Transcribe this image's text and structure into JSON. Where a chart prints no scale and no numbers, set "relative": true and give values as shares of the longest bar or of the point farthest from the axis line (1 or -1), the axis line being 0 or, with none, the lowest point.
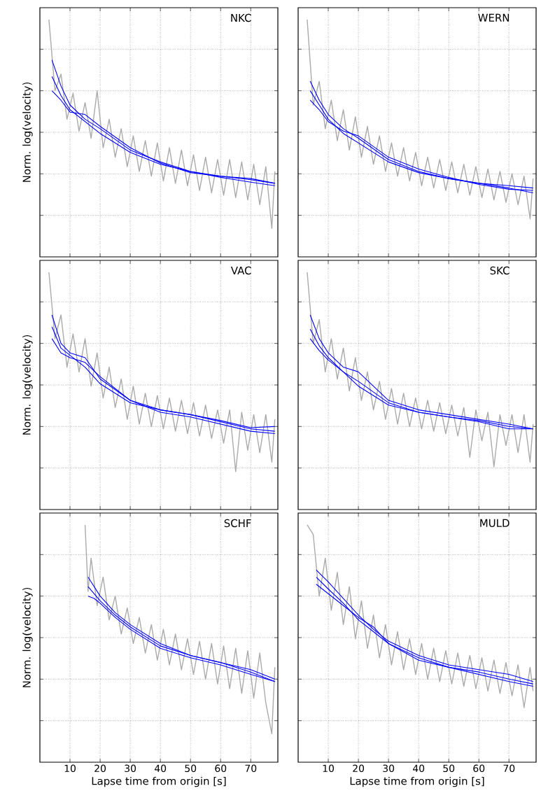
{
  "chart_data": [
    {
      "type": "line",
      "title": "NKC",
      "ylabel": "Norm. log(velocity)",
      "xlim": [
        0,
        79
      ],
      "xticks": [
        10,
        20,
        30,
        40,
        50,
        60,
        70
      ],
      "tick_labels": false,
      "grid": true,
      "relative": true,
      "series": [
        {
          "color": "#aaaaaa",
          "x": [
            3,
            5,
            7,
            9,
            11,
            13,
            15,
            17,
            19,
            21,
            23,
            25,
            27,
            29,
            31,
            33,
            35,
            37,
            39,
            41,
            43,
            45,
            47,
            49,
            51,
            53,
            55,
            57,
            59,
            61,
            63,
            65,
            67,
            69,
            71,
            73,
            75,
            77,
            78
          ],
          "values": [
            1.0,
            0.7,
            0.77,
            0.58,
            0.69,
            0.53,
            0.65,
            0.5,
            0.7,
            0.46,
            0.58,
            0.42,
            0.54,
            0.38,
            0.51,
            0.36,
            0.49,
            0.34,
            0.48,
            0.32,
            0.46,
            0.31,
            0.45,
            0.3,
            0.43,
            0.28,
            0.42,
            0.27,
            0.41,
            0.26,
            0.41,
            0.25,
            0.4,
            0.24,
            0.39,
            0.22,
            0.38,
            0.12,
            0.36
          ]
        },
        {
          "color": "#0000ff",
          "x": [
            4,
            7,
            10,
            15,
            20,
            30,
            40,
            50,
            60,
            70,
            78
          ],
          "values": [
            0.83,
            0.72,
            0.64,
            0.58,
            0.54,
            0.45,
            0.4,
            0.36,
            0.34,
            0.33,
            0.31
          ]
        },
        {
          "color": "#0000ff",
          "x": [
            4,
            7,
            10,
            15,
            20,
            30,
            40,
            50,
            60,
            70,
            78
          ],
          "values": [
            0.76,
            0.68,
            0.62,
            0.57,
            0.52,
            0.44,
            0.39,
            0.36,
            0.335,
            0.315,
            0.3
          ]
        },
        {
          "color": "#0000ff",
          "x": [
            4,
            7,
            10,
            15,
            20,
            30,
            40,
            50,
            60,
            70,
            78
          ],
          "values": [
            0.7,
            0.66,
            0.61,
            0.6,
            0.55,
            0.46,
            0.395,
            0.355,
            0.34,
            0.325,
            0.31
          ]
        }
      ]
    },
    {
      "type": "line",
      "title": "WERN",
      "xlim": [
        0,
        79
      ],
      "xticks": [
        10,
        20,
        30,
        40,
        50,
        60,
        70
      ],
      "tick_labels": false,
      "grid": true,
      "relative": true,
      "series": [
        {
          "color": "#aaaaaa",
          "x": [
            3,
            5,
            7,
            9,
            11,
            13,
            15,
            17,
            19,
            21,
            23,
            25,
            27,
            29,
            31,
            33,
            35,
            37,
            39,
            41,
            43,
            45,
            47,
            49,
            51,
            53,
            55,
            57,
            59,
            61,
            63,
            65,
            67,
            69,
            71,
            73,
            75,
            77,
            78
          ],
          "values": [
            1.0,
            0.64,
            0.74,
            0.54,
            0.66,
            0.49,
            0.62,
            0.45,
            0.59,
            0.42,
            0.55,
            0.39,
            0.51,
            0.36,
            0.48,
            0.34,
            0.46,
            0.32,
            0.44,
            0.3,
            0.42,
            0.29,
            0.41,
            0.28,
            0.4,
            0.27,
            0.39,
            0.26,
            0.38,
            0.25,
            0.37,
            0.24,
            0.36,
            0.23,
            0.35,
            0.22,
            0.34,
            0.16,
            0.33
          ]
        },
        {
          "color": "#0000ff",
          "x": [
            4,
            7,
            10,
            15,
            20,
            30,
            40,
            50,
            60,
            70,
            78
          ],
          "values": [
            0.74,
            0.66,
            0.6,
            0.54,
            0.5,
            0.41,
            0.36,
            0.33,
            0.31,
            0.3,
            0.29
          ]
        },
        {
          "color": "#0000ff",
          "x": [
            4,
            7,
            10,
            15,
            20,
            30,
            40,
            50,
            60,
            70,
            78
          ],
          "values": [
            0.7,
            0.64,
            0.58,
            0.52,
            0.48,
            0.4,
            0.355,
            0.33,
            0.31,
            0.29,
            0.27
          ]
        },
        {
          "color": "#0000ff",
          "x": [
            4,
            7,
            10,
            15,
            20,
            30,
            40,
            50,
            60,
            70,
            78
          ],
          "values": [
            0.66,
            0.62,
            0.57,
            0.53,
            0.51,
            0.42,
            0.37,
            0.335,
            0.305,
            0.285,
            0.28
          ]
        }
      ]
    },
    {
      "type": "line",
      "title": "VAC",
      "ylabel": "Norm. log(velocity)",
      "xlim": [
        0,
        79
      ],
      "xticks": [
        10,
        20,
        30,
        40,
        50,
        60,
        70
      ],
      "tick_labels": false,
      "grid": true,
      "relative": true,
      "series": [
        {
          "color": "#aaaaaa",
          "x": [
            3,
            5,
            7,
            9,
            11,
            13,
            15,
            17,
            19,
            21,
            23,
            25,
            27,
            29,
            31,
            33,
            35,
            37,
            39,
            41,
            43,
            45,
            47,
            49,
            51,
            53,
            55,
            57,
            59,
            61,
            63,
            65,
            67,
            69,
            71,
            73,
            75,
            77,
            78
          ],
          "values": [
            1.0,
            0.72,
            0.82,
            0.6,
            0.74,
            0.58,
            0.72,
            0.52,
            0.66,
            0.47,
            0.6,
            0.43,
            0.55,
            0.38,
            0.52,
            0.36,
            0.49,
            0.35,
            0.48,
            0.34,
            0.47,
            0.33,
            0.46,
            0.32,
            0.45,
            0.31,
            0.44,
            0.3,
            0.42,
            0.28,
            0.42,
            0.16,
            0.41,
            0.25,
            0.4,
            0.24,
            0.4,
            0.2,
            0.38
          ]
        },
        {
          "color": "#0000ff",
          "x": [
            4,
            7,
            10,
            15,
            20,
            30,
            40,
            50,
            60,
            70,
            78
          ],
          "values": [
            0.82,
            0.7,
            0.66,
            0.64,
            0.55,
            0.46,
            0.42,
            0.4,
            0.37,
            0.34,
            0.33
          ]
        },
        {
          "color": "#0000ff",
          "x": [
            4,
            7,
            10,
            15,
            20,
            30,
            40,
            50,
            60,
            70,
            78
          ],
          "values": [
            0.77,
            0.68,
            0.65,
            0.6,
            0.53,
            0.45,
            0.42,
            0.4,
            0.375,
            0.345,
            0.35
          ]
        },
        {
          "color": "#0000ff",
          "x": [
            4,
            7,
            10,
            15,
            20,
            30,
            40,
            50,
            60,
            70,
            78
          ],
          "values": [
            0.72,
            0.66,
            0.64,
            0.62,
            0.56,
            0.46,
            0.41,
            0.39,
            0.36,
            0.33,
            0.32
          ]
        }
      ]
    },
    {
      "type": "line",
      "title": "SKC",
      "xlim": [
        0,
        79
      ],
      "xticks": [
        10,
        20,
        30,
        40,
        50,
        60,
        70
      ],
      "tick_labels": false,
      "grid": true,
      "relative": true,
      "series": [
        {
          "color": "#aaaaaa",
          "x": [
            3,
            5,
            7,
            9,
            11,
            13,
            15,
            17,
            19,
            21,
            23,
            25,
            27,
            29,
            31,
            33,
            35,
            37,
            39,
            41,
            43,
            45,
            47,
            49,
            51,
            53,
            55,
            57,
            59,
            61,
            63,
            65,
            67,
            69,
            71,
            73,
            75,
            77,
            78
          ],
          "values": [
            1.0,
            0.7,
            0.8,
            0.58,
            0.72,
            0.55,
            0.68,
            0.5,
            0.64,
            0.46,
            0.58,
            0.42,
            0.54,
            0.38,
            0.51,
            0.36,
            0.49,
            0.35,
            0.47,
            0.34,
            0.46,
            0.33,
            0.45,
            0.32,
            0.44,
            0.31,
            0.43,
            0.22,
            0.42,
            0.29,
            0.41,
            0.18,
            0.4,
            0.27,
            0.4,
            0.24,
            0.4,
            0.2,
            0.36
          ]
        },
        {
          "color": "#0000ff",
          "x": [
            4,
            7,
            10,
            15,
            20,
            30,
            40,
            50,
            60,
            70,
            78
          ],
          "values": [
            0.82,
            0.72,
            0.66,
            0.6,
            0.58,
            0.46,
            0.42,
            0.4,
            0.38,
            0.36,
            0.34
          ]
        },
        {
          "color": "#0000ff",
          "x": [
            4,
            7,
            10,
            15,
            20,
            30,
            40,
            50,
            60,
            70,
            78
          ],
          "values": [
            0.76,
            0.69,
            0.64,
            0.58,
            0.54,
            0.45,
            0.41,
            0.39,
            0.375,
            0.35,
            0.34
          ]
        },
        {
          "color": "#0000ff",
          "x": [
            4,
            7,
            10,
            15,
            20,
            30,
            40,
            50,
            60,
            70,
            78
          ],
          "values": [
            0.72,
            0.67,
            0.63,
            0.58,
            0.52,
            0.44,
            0.41,
            0.39,
            0.37,
            0.34,
            0.34
          ]
        }
      ]
    },
    {
      "type": "line",
      "title": "SCHF",
      "xlabel": "Lapse time from origin [s]",
      "ylabel": "Norm. log(velocity)",
      "xlim": [
        0,
        79
      ],
      "xticks": [
        10,
        20,
        30,
        40,
        50,
        60,
        70
      ],
      "tick_labels": "x",
      "grid": true,
      "relative": true,
      "series": [
        {
          "color": "#aaaaaa",
          "x": [
            15,
            16,
            17,
            19,
            21,
            23,
            25,
            27,
            29,
            31,
            33,
            35,
            37,
            39,
            41,
            43,
            45,
            47,
            49,
            51,
            53,
            55,
            57,
            59,
            61,
            63,
            65,
            67,
            69,
            71,
            73,
            75,
            77,
            78
          ],
          "values": [
            1.0,
            0.72,
            0.86,
            0.66,
            0.78,
            0.6,
            0.7,
            0.54,
            0.65,
            0.5,
            0.61,
            0.46,
            0.58,
            0.43,
            0.56,
            0.41,
            0.54,
            0.39,
            0.52,
            0.37,
            0.51,
            0.35,
            0.5,
            0.33,
            0.49,
            0.31,
            0.48,
            0.29,
            0.47,
            0.27,
            0.46,
            0.25,
            0.12,
            0.4
          ]
        },
        {
          "color": "#0000ff",
          "x": [
            16,
            18,
            20,
            25,
            30,
            40,
            50,
            60,
            70,
            78
          ],
          "values": [
            0.78,
            0.74,
            0.7,
            0.63,
            0.58,
            0.5,
            0.45,
            0.42,
            0.39,
            0.35
          ]
        },
        {
          "color": "#0000ff",
          "x": [
            16,
            18,
            20,
            25,
            30,
            40,
            50,
            60,
            70,
            78
          ],
          "values": [
            0.74,
            0.71,
            0.68,
            0.62,
            0.57,
            0.49,
            0.45,
            0.42,
            0.38,
            0.34
          ]
        },
        {
          "color": "#0000ff",
          "x": [
            16,
            18,
            20,
            25,
            30,
            40,
            50,
            60,
            70,
            78
          ],
          "values": [
            0.7,
            0.69,
            0.67,
            0.61,
            0.56,
            0.48,
            0.44,
            0.41,
            0.37,
            0.34
          ]
        }
      ]
    },
    {
      "type": "line",
      "title": "MULD",
      "xlabel": "Lapse time from origin [s]",
      "xlim": [
        0,
        79
      ],
      "xticks": [
        10,
        20,
        30,
        40,
        50,
        60,
        70
      ],
      "tick_labels": "x",
      "grid": true,
      "relative": true,
      "series": [
        {
          "color": "#aaaaaa",
          "x": [
            3,
            5,
            7,
            9,
            11,
            13,
            15,
            17,
            19,
            21,
            23,
            25,
            27,
            29,
            31,
            33,
            35,
            37,
            39,
            41,
            43,
            45,
            47,
            49,
            51,
            53,
            55,
            57,
            59,
            61,
            63,
            65,
            67,
            69,
            71,
            73,
            75,
            77,
            78
          ],
          "values": [
            1.0,
            0.96,
            0.7,
            0.86,
            0.64,
            0.8,
            0.58,
            0.74,
            0.52,
            0.68,
            0.48,
            0.62,
            0.44,
            0.58,
            0.41,
            0.55,
            0.39,
            0.52,
            0.37,
            0.5,
            0.35,
            0.48,
            0.34,
            0.47,
            0.33,
            0.46,
            0.32,
            0.45,
            0.31,
            0.44,
            0.3,
            0.43,
            0.29,
            0.42,
            0.28,
            0.41,
            0.23,
            0.4,
            0.3
          ]
        },
        {
          "color": "#0000ff",
          "x": [
            6,
            10,
            15,
            20,
            25,
            30,
            40,
            50,
            60,
            70,
            78
          ],
          "values": [
            0.81,
            0.76,
            0.69,
            0.62,
            0.56,
            0.51,
            0.45,
            0.41,
            0.39,
            0.37,
            0.34
          ]
        },
        {
          "color": "#0000ff",
          "x": [
            6,
            10,
            15,
            20,
            25,
            30,
            40,
            50,
            60,
            70,
            78
          ],
          "values": [
            0.78,
            0.73,
            0.67,
            0.6,
            0.55,
            0.5,
            0.44,
            0.4,
            0.38,
            0.35,
            0.33
          ]
        },
        {
          "color": "#0000ff",
          "x": [
            6,
            10,
            15,
            20,
            25,
            30,
            40,
            50,
            60,
            70,
            78
          ],
          "values": [
            0.75,
            0.71,
            0.66,
            0.61,
            0.57,
            0.5,
            0.43,
            0.4,
            0.37,
            0.34,
            0.32
          ]
        }
      ]
    }
  ]
}
